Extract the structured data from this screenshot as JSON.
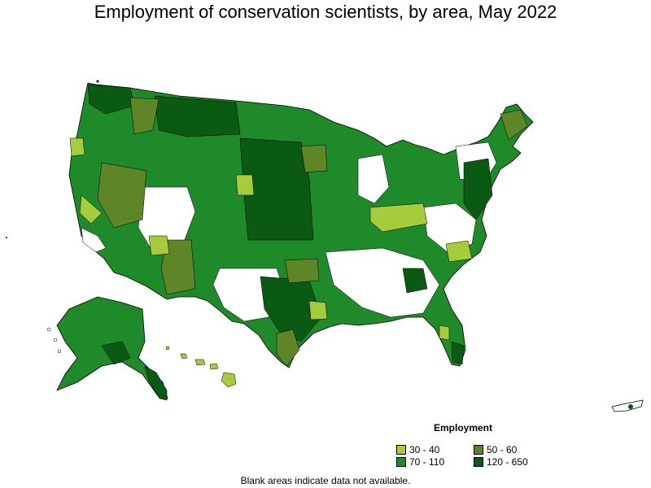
{
  "title": "Employment of conservation scientists, by area, May 2022",
  "legend": {
    "title": "Employment",
    "items": [
      {
        "label": "30 - 40",
        "color": "#a6cc3c"
      },
      {
        "label": "50 - 60",
        "color": "#5e8528"
      },
      {
        "label": "70 - 110",
        "color": "#1e8a2a"
      },
      {
        "label": "120 - 650",
        "color": "#0a5a14"
      }
    ]
  },
  "note": "Blank areas indicate data not available.",
  "colors": {
    "blank": "#ffffff",
    "border": "#000000"
  }
}
